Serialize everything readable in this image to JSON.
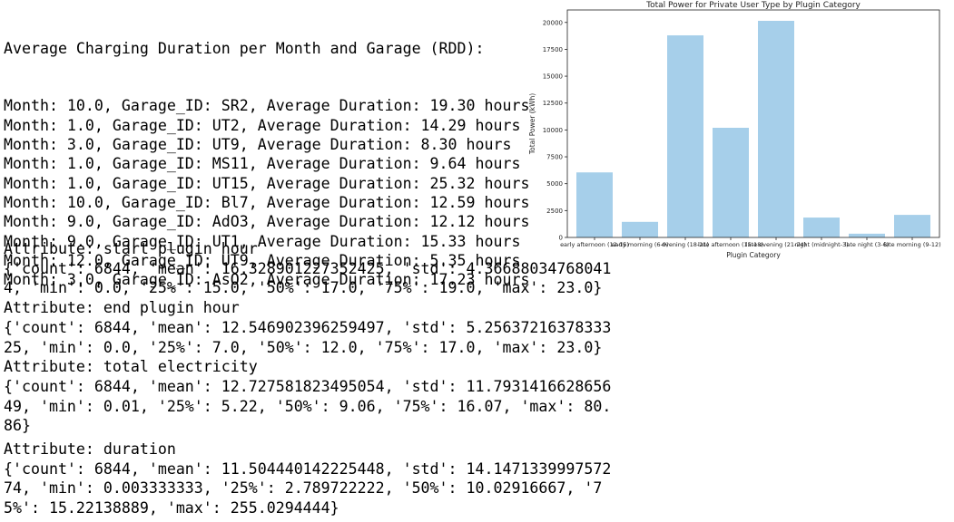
{
  "rdd_output": {
    "header": "Average Charging Duration per Month and Garage (RDD):",
    "lines": [
      "Month: 10.0, Garage_ID: SR2, Average Duration: 19.30 hours",
      "Month: 1.0, Garage_ID: UT2, Average Duration: 14.29 hours",
      "Month: 3.0, Garage_ID: UT9, Average Duration: 8.30 hours",
      "Month: 1.0, Garage_ID: MS11, Average Duration: 9.64 hours",
      "Month: 1.0, Garage_ID: UT15, Average Duration: 25.32 hours",
      "Month: 10.0, Garage_ID: Bl7, Average Duration: 12.59 hours",
      "Month: 9.0, Garage_ID: AdO3, Average Duration: 12.12 hours",
      "Month: 9.0, Garage_ID: UT1, Average Duration: 15.33 hours",
      "Month: 12.0, Garage_ID: UT9, Average Duration: 5.35 hours",
      "Month: 3.0, Garage_ID: AsO2, Average Duration: 17.23 hours"
    ]
  },
  "stats_output": [
    {
      "attribute": "Attribute: start plugin hour",
      "lines": [
        "{'count': 6844, 'mean': 16.328901227352425, 'std': 4.36688034768041",
        "4, 'min': 0.0, '25%': 15.0, '50%': 17.0, '75%': 19.0, 'max': 23.0}"
      ]
    },
    {
      "attribute": "Attribute: end plugin hour",
      "lines": [
        "{'count': 6844, 'mean': 12.546902396259497, 'std': 5.25637216378333",
        "25, 'min': 0.0, '25%': 7.0, '50%': 12.0, '75%': 17.0, 'max': 23.0}"
      ]
    },
    {
      "attribute": "Attribute: total electricity",
      "lines": [
        "{'count': 6844, 'mean': 12.727581823495054, 'std': 11.7931416628656",
        "49, 'min': 0.01, '25%': 5.22, '50%': 9.06, '75%': 16.07, 'max': 80.",
        "86}"
      ]
    },
    {
      "attribute": "Attribute: duration",
      "lines": [
        "{'count': 6844, 'mean': 11.504440142225448, 'std': 14.1471339997572",
        "74, 'min': 0.003333333, '25%': 2.789722222, '50%': 10.02916667, '7",
        "5%': 15.22138889, 'max': 255.0294444}"
      ]
    }
  ],
  "chart_data": {
    "type": "bar",
    "title": "Total Power for Private User Type by Plugin Category",
    "x_label": "Plugin Category",
    "y_label": "Total Power (kWh)",
    "categories": [
      "early afternoon (12-15)",
      "early morning (6-9)",
      "evening (18-21)",
      "late afternoon (15-18)",
      "late evening (21-24)",
      "night (midnight-3)",
      "late night (3-6)",
      "late morning (9-12)"
    ],
    "values": [
      6050,
      1450,
      18800,
      10200,
      20150,
      1850,
      350,
      2100
    ],
    "color": "#a6cfea",
    "ylim": [
      0,
      21160
    ],
    "yticks": [
      0,
      2500,
      5000,
      7500,
      10000,
      12500,
      15000,
      17500,
      20000
    ]
  }
}
